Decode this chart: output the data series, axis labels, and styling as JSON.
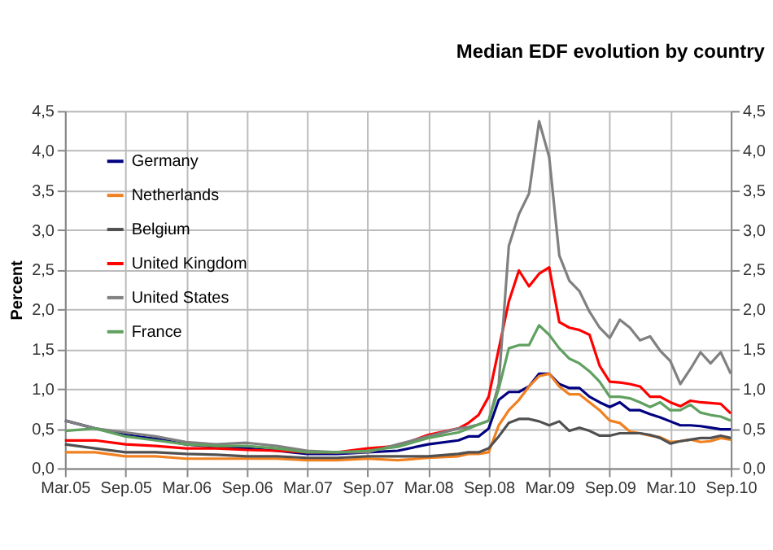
{
  "chart_data": {
    "type": "line",
    "title": "Median EDF evolution by country",
    "ylabel": "Percent",
    "x": [
      "2005-03",
      "2005-06",
      "2005-09",
      "2005-12",
      "2006-03",
      "2006-06",
      "2006-09",
      "2006-12",
      "2007-03",
      "2007-06",
      "2007-09",
      "2007-12",
      "2008-03",
      "2008-06",
      "2008-07",
      "2008-08",
      "2008-09",
      "2008-10",
      "2008-11",
      "2008-12",
      "2009-01",
      "2009-02",
      "2009-03",
      "2009-04",
      "2009-05",
      "2009-06",
      "2009-07",
      "2009-08",
      "2009-09",
      "2009-10",
      "2009-11",
      "2009-12",
      "2010-01",
      "2010-02",
      "2010-03",
      "2010-04",
      "2010-05",
      "2010-06",
      "2010-07",
      "2010-08",
      "2010-09"
    ],
    "series": [
      {
        "name": "Germany",
        "color": "#000080",
        "values": [
          0.6,
          0.5,
          0.42,
          0.37,
          0.3,
          0.27,
          0.25,
          0.22,
          0.18,
          0.18,
          0.2,
          0.22,
          0.3,
          0.35,
          0.4,
          0.4,
          0.5,
          0.86,
          0.96,
          0.96,
          1.03,
          1.19,
          1.19,
          1.06,
          1.01,
          1.01,
          0.9,
          0.83,
          0.77,
          0.83,
          0.73,
          0.73,
          0.68,
          0.64,
          0.59,
          0.54,
          0.54,
          0.53,
          0.51,
          0.49,
          0.49
        ]
      },
      {
        "name": "Netherlands",
        "color": "#f08020",
        "values": [
          0.2,
          0.2,
          0.15,
          0.15,
          0.12,
          0.12,
          0.12,
          0.12,
          0.1,
          0.1,
          0.12,
          0.1,
          0.13,
          0.15,
          0.18,
          0.18,
          0.2,
          0.54,
          0.73,
          0.86,
          1.03,
          1.16,
          1.19,
          1.03,
          0.93,
          0.93,
          0.83,
          0.73,
          0.6,
          0.57,
          0.46,
          0.44,
          0.41,
          0.39,
          0.33,
          0.34,
          0.36,
          0.33,
          0.34,
          0.38,
          0.36
        ]
      },
      {
        "name": "Belgium",
        "color": "#505050",
        "values": [
          0.3,
          0.25,
          0.2,
          0.2,
          0.18,
          0.17,
          0.15,
          0.15,
          0.13,
          0.13,
          0.15,
          0.15,
          0.15,
          0.18,
          0.2,
          0.2,
          0.25,
          0.4,
          0.57,
          0.62,
          0.62,
          0.59,
          0.54,
          0.59,
          0.47,
          0.51,
          0.47,
          0.41,
          0.41,
          0.44,
          0.44,
          0.44,
          0.42,
          0.38,
          0.31,
          0.34,
          0.36,
          0.38,
          0.38,
          0.41,
          0.38
        ]
      },
      {
        "name": "United Kingdom",
        "color": "#ff0000",
        "values": [
          0.35,
          0.35,
          0.3,
          0.28,
          0.25,
          0.25,
          0.23,
          0.22,
          0.2,
          0.2,
          0.25,
          0.28,
          0.42,
          0.5,
          0.57,
          0.67,
          0.9,
          1.5,
          2.1,
          2.49,
          2.29,
          2.45,
          2.53,
          1.84,
          1.77,
          1.74,
          1.68,
          1.29,
          1.09,
          1.08,
          1.06,
          1.03,
          0.9,
          0.9,
          0.83,
          0.78,
          0.85,
          0.83,
          0.82,
          0.81,
          0.69
        ]
      },
      {
        "name": "United States",
        "color": "#808080",
        "values": [
          0.6,
          0.5,
          0.45,
          0.4,
          0.33,
          0.3,
          0.32,
          0.28,
          0.22,
          0.2,
          0.2,
          0.3,
          0.4,
          0.5,
          0.52,
          0.55,
          0.6,
          1.06,
          2.8,
          3.2,
          3.46,
          4.37,
          3.92,
          2.68,
          2.36,
          2.23,
          1.97,
          1.77,
          1.64,
          1.87,
          1.77,
          1.61,
          1.66,
          1.48,
          1.35,
          1.06,
          1.25,
          1.46,
          1.32,
          1.46,
          1.19
        ]
      },
      {
        "name": "France",
        "color": "#60a060",
        "values": [
          0.47,
          0.5,
          0.4,
          0.35,
          0.3,
          0.28,
          0.28,
          0.25,
          0.2,
          0.2,
          0.22,
          0.27,
          0.38,
          0.45,
          0.5,
          0.55,
          0.6,
          1.0,
          1.51,
          1.55,
          1.55,
          1.8,
          1.68,
          1.51,
          1.38,
          1.32,
          1.22,
          1.09,
          0.9,
          0.9,
          0.88,
          0.83,
          0.77,
          0.83,
          0.73,
          0.73,
          0.8,
          0.7,
          0.67,
          0.65,
          0.6
        ]
      }
    ],
    "xlim": [
      "2005-03",
      "2010-09"
    ],
    "xticks": [
      {
        "value": "2005-03",
        "label": "Mar.05"
      },
      {
        "value": "2005-09",
        "label": "Sep.05"
      },
      {
        "value": "2006-03",
        "label": "Mar.06"
      },
      {
        "value": "2006-09",
        "label": "Sep.06"
      },
      {
        "value": "2007-03",
        "label": "Mar.07"
      },
      {
        "value": "2007-09",
        "label": "Sep.07"
      },
      {
        "value": "2008-03",
        "label": "Mar.08"
      },
      {
        "value": "2008-09",
        "label": "Sep.08"
      },
      {
        "value": "2009-03",
        "label": "Mar.09"
      },
      {
        "value": "2009-09",
        "label": "Sep.09"
      },
      {
        "value": "2010-03",
        "label": "Mar.10"
      },
      {
        "value": "2010-09",
        "label": "Sep.10"
      }
    ],
    "ylim": [
      0,
      4.5
    ],
    "yticks": [
      {
        "value": 0,
        "label": "0,0"
      },
      {
        "value": 0.5,
        "label": "0,5"
      },
      {
        "value": 1,
        "label": "1,0"
      },
      {
        "value": 1.5,
        "label": "1,5"
      },
      {
        "value": 2,
        "label": "2,0"
      },
      {
        "value": 2.5,
        "label": "2,5"
      },
      {
        "value": 3,
        "label": "3,0"
      },
      {
        "value": 3.5,
        "label": "3,5"
      },
      {
        "value": 4,
        "label": "4,0"
      },
      {
        "value": 4.5,
        "label": "4,5"
      }
    ],
    "y2lim": [
      0,
      4.5
    ],
    "y2ticks": [
      {
        "value": 0,
        "label": "0,0"
      },
      {
        "value": 0.5,
        "label": "0,5"
      },
      {
        "value": 1,
        "label": "1,0"
      },
      {
        "value": 1.5,
        "label": "1,5"
      },
      {
        "value": 2,
        "label": "2,0"
      },
      {
        "value": 2.5,
        "label": "2,5"
      },
      {
        "value": 3,
        "label": "3,0"
      },
      {
        "value": 3.5,
        "label": "3,5"
      },
      {
        "value": 4,
        "label": "4,0"
      },
      {
        "value": 4.5,
        "label": "4,5"
      }
    ],
    "grid": true,
    "legend": "top left",
    "marker": "none",
    "line_style": "solid"
  }
}
